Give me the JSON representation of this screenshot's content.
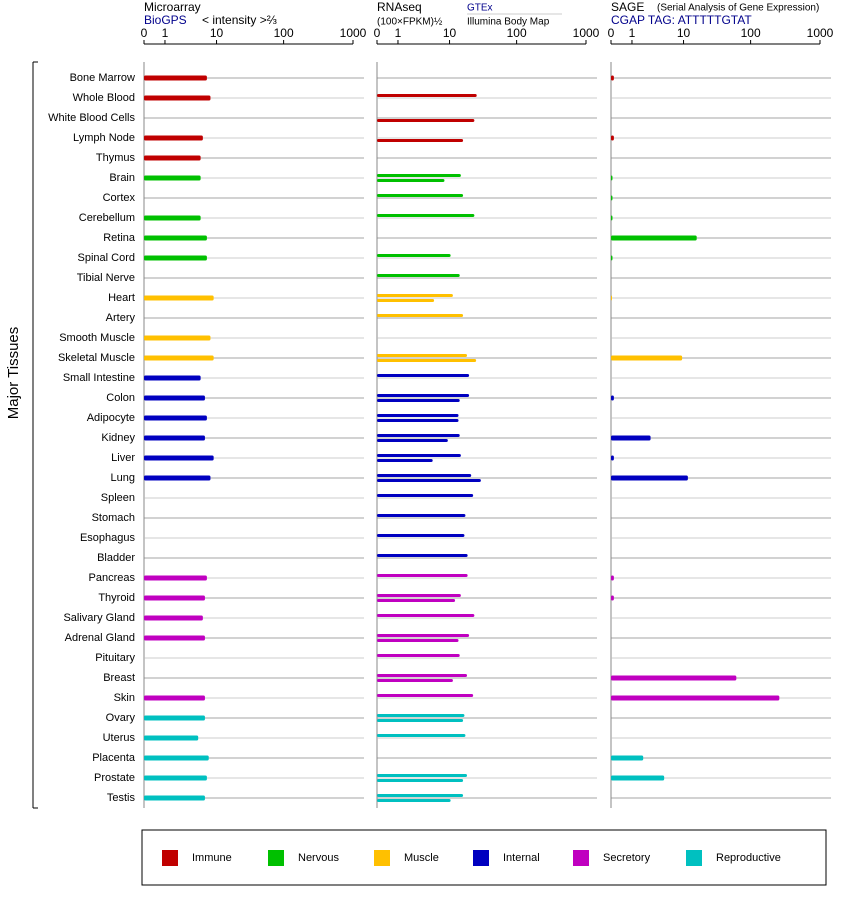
{
  "chart_data": [
    {
      "type": "bar",
      "title": "Microarray",
      "xlabel": "< intensity >⅔",
      "ylabel": "Major Tissues",
      "categories": [
        "Bone Marrow",
        "Whole Blood",
        "White Blood Cells",
        "Lymph Node",
        "Thymus",
        "Brain",
        "Cortex",
        "Cerebellum",
        "Retina",
        "Spinal Cord",
        "Tibial Nerve",
        "Heart",
        "Artery",
        "Smooth Muscle",
        "Skeletal Muscle",
        "Small Intestine",
        "Colon",
        "Adipocyte",
        "Kidney",
        "Liver",
        "Lung",
        "Spleen",
        "Stomach",
        "Esophagus",
        "Bladder",
        "Pancreas",
        "Thyroid",
        "Salivary Gland",
        "Adrenal Gland",
        "Pituitary",
        "Breast",
        "Skin",
        "Ovary",
        "Uterus",
        "Placenta",
        "Prostate",
        "Testis"
      ],
      "colors": [
        "#c00000",
        "#c00000",
        "#c00000",
        "#c00000",
        "#c00000",
        "#00c000",
        "#00c000",
        "#00c000",
        "#00c000",
        "#00c000",
        "#00c000",
        "#ffc000",
        "#ffc000",
        "#ffc000",
        "#ffc000",
        "#0000c0",
        "#0000c0",
        "#0000c0",
        "#0000c0",
        "#0000c0",
        "#0000c0",
        "#0000c0",
        "#0000c0",
        "#0000c0",
        "#0000c0",
        "#c000c0",
        "#c000c0",
        "#c000c0",
        "#c000c0",
        "#c000c0",
        "#c000c0",
        "#c000c0",
        "#00c0c0",
        "#00c0c0",
        "#00c0c0",
        "#00c0c0",
        "#00c0c0"
      ],
      "xlim": [
        0,
        1000
      ],
      "xticks": [
        0,
        1,
        10,
        100,
        1000
      ],
      "series": [
        {
          "name": "BioGPS",
          "values": [
            7,
            8,
            null,
            6,
            5.5,
            5.5,
            null,
            5.5,
            7,
            7,
            null,
            9,
            null,
            8,
            9,
            5.5,
            6.5,
            7,
            6.5,
            9,
            8,
            null,
            null,
            null,
            null,
            7,
            6.5,
            6,
            6.5,
            null,
            null,
            6.5,
            6.5,
            5,
            7.5,
            7,
            6.5
          ]
        }
      ]
    },
    {
      "type": "bar",
      "title": "RNAseq",
      "xlabel": "(100×FPKM)½",
      "xlim": [
        0,
        1000
      ],
      "xticks": [
        0,
        1,
        10,
        100,
        1000
      ],
      "series": [
        {
          "name": "GTEx",
          "values": [
            null,
            26,
            null,
            null,
            null,
            15,
            16.2,
            24,
            null,
            10.4,
            14.4,
            11.3,
            16.2,
            null,
            18.6,
            20,
            20,
            13.8,
            14.4,
            15,
            21.5,
            23,
            17.6,
            17,
            19,
            19,
            15,
            24,
            20,
            14.4,
            18.6,
            23,
            17,
            17.6,
            null,
            18.6,
            16.2
          ]
        },
        {
          "name": "Illumina Body Map",
          "values": [
            null,
            null,
            24,
            16.2,
            null,
            8.3,
            null,
            null,
            null,
            null,
            null,
            5.6,
            null,
            null,
            25.5,
            null,
            14.4,
            13.8,
            9.4,
            5.3,
            30,
            null,
            null,
            null,
            null,
            null,
            12.2,
            null,
            13.8,
            null,
            11.3,
            null,
            16.2,
            null,
            null,
            16.2,
            10.4
          ]
        }
      ]
    },
    {
      "type": "bar",
      "title": "SAGE",
      "subtitle": "(Serial Analysis of Gene Expression)",
      "xlim": [
        0,
        1000
      ],
      "xticks": [
        0,
        1,
        10,
        100,
        1000
      ],
      "series": [
        {
          "name": "CGAP TAG: ATTTTTGTAT",
          "values": [
            0.1,
            null,
            null,
            0.1,
            null,
            0.05,
            0.05,
            0.05,
            16,
            0.05,
            null,
            0.02,
            null,
            null,
            9.5,
            null,
            0.1,
            null,
            2.7,
            0.1,
            11.7,
            null,
            null,
            null,
            null,
            0.1,
            0.1,
            null,
            null,
            null,
            62,
            260,
            null,
            null,
            1.9,
            4.8,
            null
          ]
        }
      ]
    }
  ],
  "legend": [
    {
      "name": "Immune",
      "color": "#c00000"
    },
    {
      "name": "Nervous",
      "color": "#00c000"
    },
    {
      "name": "Muscle",
      "color": "#ffc000"
    },
    {
      "name": "Internal",
      "color": "#0000c0"
    },
    {
      "name": "Secretory",
      "color": "#c000c0"
    },
    {
      "name": "Reproductive",
      "color": "#00c0c0"
    }
  ]
}
